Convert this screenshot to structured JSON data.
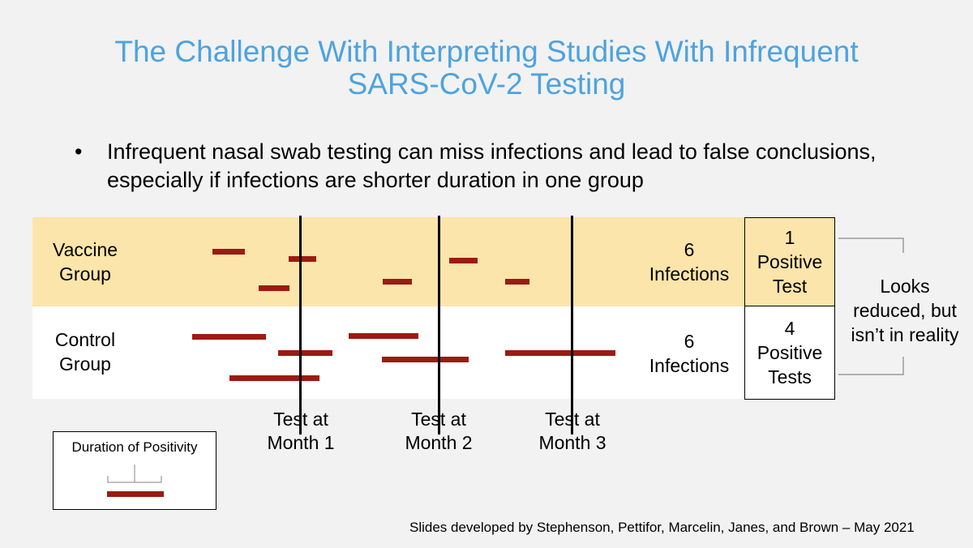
{
  "title": {
    "line1": "The Challenge With Interpreting Studies With Infrequent",
    "line2": "SARS-CoV-2 Testing"
  },
  "bullet": {
    "symbol": "•",
    "text": "Infrequent nasal swab testing can miss infections and lead to false conclusions, especially if infections are shorter duration in one group"
  },
  "groups": {
    "vaccine": {
      "line1": "Vaccine",
      "line2": "Group",
      "count_num": "6",
      "count_text": "Infections",
      "result_num": "1",
      "result_line1": "Positive",
      "result_line2": "Test"
    },
    "control": {
      "line1": "Control",
      "line2": "Group",
      "count_num": "6",
      "count_text": "Infections",
      "result_num": "4",
      "result_line1": "Positive",
      "result_line2": "Tests"
    }
  },
  "tests": [
    {
      "line1": "Test at",
      "line2": "Month 1"
    },
    {
      "line1": "Test at",
      "line2": "Month 2"
    },
    {
      "line1": "Test at",
      "line2": "Month 3"
    }
  ],
  "conclusion": {
    "line1": "Looks",
    "line2": "reduced, but",
    "line3": "isn’t in reality"
  },
  "legend": {
    "title": "Duration of Positivity"
  },
  "footer": "Slides developed by Stephenson, Pettifor, Marcelin, Janes, and Brown – May 2021",
  "colors": {
    "title": "#4da3e0",
    "vaccine_band": "#fbe5aa",
    "infection_bar": "#9b1b12"
  }
}
